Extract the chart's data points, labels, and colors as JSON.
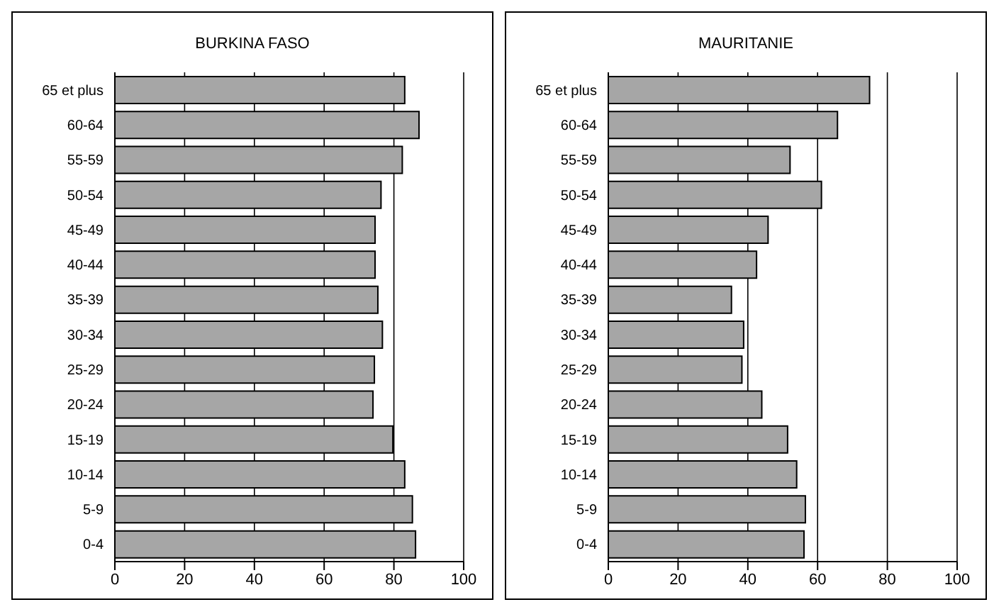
{
  "chart_data": [
    {
      "type": "bar",
      "orientation": "horizontal",
      "title": "BURKINA FASO",
      "categories": [
        "65 et plus",
        "60-64",
        "55-59",
        "50-54",
        "45-49",
        "40-44",
        "35-39",
        "30-34",
        "25-29",
        "20-24",
        "15-19",
        "10-14",
        "5-9",
        "0-4"
      ],
      "values": [
        83.1,
        87.2,
        82.4,
        76.3,
        74.6,
        74.6,
        75.4,
        76.7,
        74.4,
        74.0,
        79.7,
        83.1,
        85.3,
        86.2
      ],
      "color": "#a6a6a6",
      "xlim": [
        0,
        100
      ],
      "xticks": [
        0,
        20,
        40,
        60,
        80,
        100
      ],
      "grid": "x"
    },
    {
      "type": "bar",
      "orientation": "horizontal",
      "title": "MAURITANIE",
      "categories": [
        "65 et plus",
        "60-64",
        "55-59",
        "50-54",
        "45-49",
        "40-44",
        "35-39",
        "30-34",
        "25-29",
        "20-24",
        "15-19",
        "10-14",
        "5-9",
        "0-4"
      ],
      "values": [
        74.9,
        65.7,
        52.1,
        61.1,
        45.8,
        42.5,
        35.3,
        38.8,
        38.3,
        44.0,
        51.4,
        54.0,
        56.5,
        56.1
      ],
      "color": "#a6a6a6",
      "xlim": [
        0,
        100
      ],
      "xticks": [
        0,
        20,
        40,
        60,
        80,
        100
      ],
      "grid": "x"
    }
  ]
}
